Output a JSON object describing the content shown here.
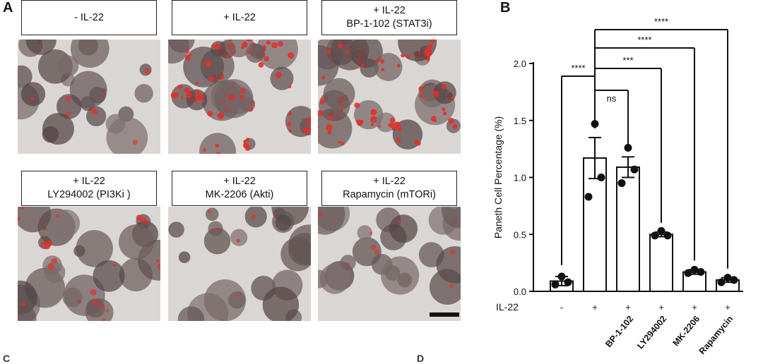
{
  "panel_a": {
    "letter": "A",
    "tiles": [
      {
        "lines": [
          "- IL-22"
        ],
        "tint": "low"
      },
      {
        "lines": [
          "+ IL-22"
        ],
        "tint": "high"
      },
      {
        "lines": [
          "+ IL-22",
          "BP-1-102 (STAT3i)"
        ],
        "tint": "high"
      },
      {
        "lines": [
          "+ IL-22",
          "LY294002 (PI3Ki )"
        ],
        "tint": "mid"
      },
      {
        "lines": [
          "+ IL-22",
          "MK-2206 (Akti)"
        ],
        "tint": "low"
      },
      {
        "lines": [
          "+ IL-22",
          "Rapamycin (mTORi)"
        ],
        "tint": "low"
      }
    ]
  },
  "panel_b": {
    "letter": "B"
  },
  "chart_data": {
    "type": "bar",
    "ylabel": "Paneth Cell Percentage (%)",
    "ylim": [
      0,
      2.0
    ],
    "yticks": [
      "0.0",
      "0.5",
      "1.0",
      "1.5",
      "2.0"
    ],
    "row_label": "IL-22",
    "il22_marks": [
      "-",
      "+",
      "+",
      "+",
      "+",
      "+"
    ],
    "categories": [
      "",
      "",
      "BP-1-102",
      "LY294002",
      "MK-2206",
      "Rapamycin"
    ],
    "values": [
      0.09,
      1.17,
      1.09,
      0.5,
      0.17,
      0.1
    ],
    "sem": [
      0.04,
      0.18,
      0.09,
      0.02,
      0.02,
      0.02
    ],
    "points": [
      [
        0.13,
        0.08,
        0.06
      ],
      [
        1.47,
        1.0,
        0.83
      ],
      [
        1.26,
        1.07,
        0.95
      ],
      [
        0.53,
        0.49,
        0.49
      ],
      [
        0.19,
        0.17,
        0.16
      ],
      [
        0.12,
        0.1,
        0.08
      ]
    ],
    "comparisons": [
      {
        "from": 0,
        "to": 1,
        "label": "****"
      },
      {
        "from": 1,
        "to": 2,
        "label": "ns"
      },
      {
        "from": 1,
        "to": 3,
        "label": "***"
      },
      {
        "from": 1,
        "to": 4,
        "label": "****"
      },
      {
        "from": 1,
        "to": 5,
        "label": "****"
      }
    ]
  }
}
